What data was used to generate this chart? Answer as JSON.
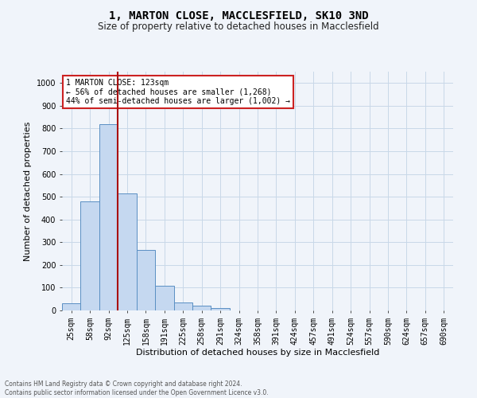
{
  "title1": "1, MARTON CLOSE, MACCLESFIELD, SK10 3ND",
  "title2": "Size of property relative to detached houses in Macclesfield",
  "xlabel": "Distribution of detached houses by size in Macclesfield",
  "ylabel": "Number of detached properties",
  "footnote1": "Contains HM Land Registry data © Crown copyright and database right 2024.",
  "footnote2": "Contains public sector information licensed under the Open Government Licence v3.0.",
  "categories": [
    "25sqm",
    "58sqm",
    "92sqm",
    "125sqm",
    "158sqm",
    "191sqm",
    "225sqm",
    "258sqm",
    "291sqm",
    "324sqm",
    "358sqm",
    "391sqm",
    "424sqm",
    "457sqm",
    "491sqm",
    "524sqm",
    "557sqm",
    "590sqm",
    "624sqm",
    "657sqm",
    "690sqm"
  ],
  "values": [
    30,
    480,
    820,
    515,
    265,
    110,
    35,
    20,
    10,
    0,
    0,
    0,
    0,
    0,
    0,
    0,
    0,
    0,
    0,
    0,
    0
  ],
  "bar_color": "#c5d8f0",
  "bar_edge_color": "#5a8fc3",
  "vline_color": "#aa1111",
  "annotation_text": "1 MARTON CLOSE: 123sqm\n← 56% of detached houses are smaller (1,268)\n44% of semi-detached houses are larger (1,002) →",
  "annotation_box_color": "white",
  "annotation_box_edge": "#cc2222",
  "ylim": [
    0,
    1050
  ],
  "yticks": [
    0,
    100,
    200,
    300,
    400,
    500,
    600,
    700,
    800,
    900,
    1000
  ],
  "grid_color": "#c8d8e8",
  "background_color": "#f0f4fa",
  "title1_fontsize": 10,
  "title2_fontsize": 8.5,
  "ylabel_fontsize": 8,
  "xlabel_fontsize": 8,
  "tick_fontsize": 7,
  "annot_fontsize": 7,
  "footnote_fontsize": 5.5
}
